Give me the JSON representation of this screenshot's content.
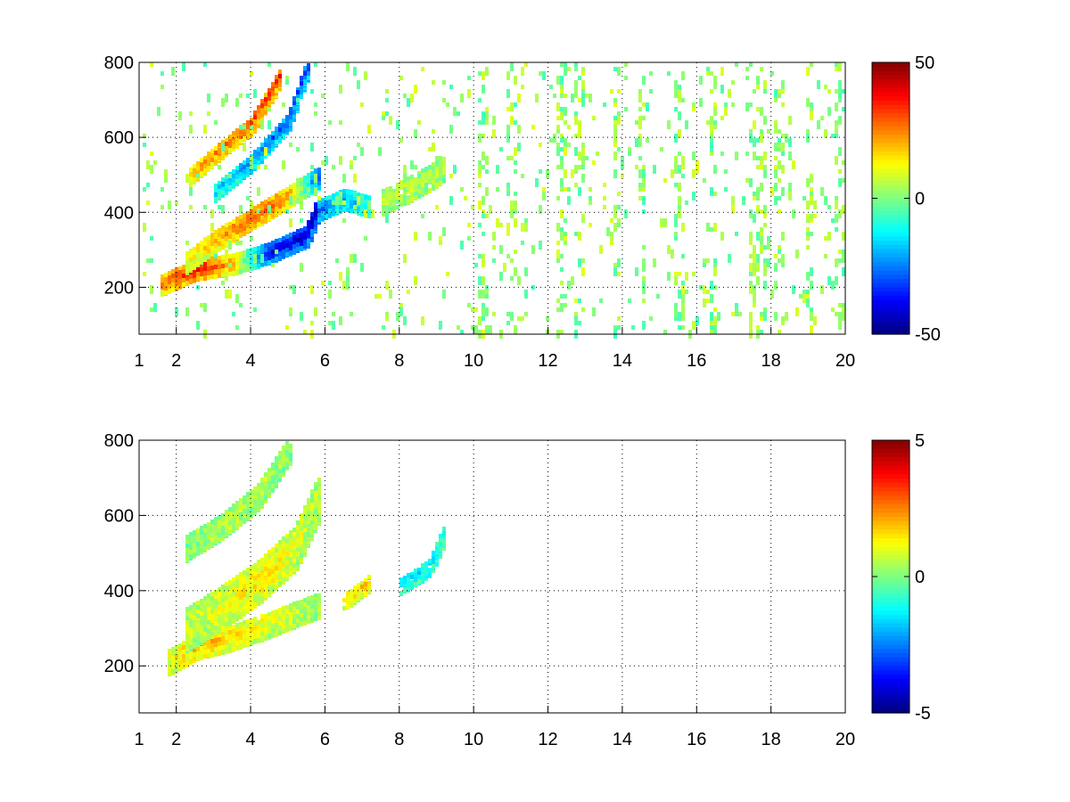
{
  "figure": {
    "background": "#ffffff"
  },
  "chart_data": [
    {
      "type": "heatmap",
      "title": "",
      "xlabel": "",
      "ylabel": "",
      "xlim": [
        1,
        20
      ],
      "ylim": [
        75,
        800
      ],
      "xticks": [
        1,
        2,
        4,
        6,
        8,
        10,
        12,
        14,
        16,
        18,
        20
      ],
      "yticks": [
        200,
        400,
        600,
        800
      ],
      "xtick_labels": [
        "1",
        "2",
        "4",
        "6",
        "8",
        "10",
        "12",
        "14",
        "16",
        "18",
        "20"
      ],
      "ytick_labels": [
        "200",
        "400",
        "600",
        "800"
      ],
      "grid": true,
      "grid_style": "dotted",
      "colormap": "jet",
      "clim": [
        -50,
        50
      ],
      "colorbar_ticks": [
        50,
        0,
        -50
      ],
      "colorbar_labels": [
        "50",
        "0",
        "-50"
      ],
      "features": [
        {
          "kind": "band",
          "x": [
            1.6,
            2.5,
            3.5,
            4.5,
            5.5,
            5.8
          ],
          "y": [
            215,
            255,
            270,
            300,
            345,
            420
          ],
          "width": 55,
          "values": [
            25,
            40,
            20,
            -40,
            -45,
            -50
          ]
        },
        {
          "kind": "band",
          "x": [
            2.2,
            3.0,
            4.0,
            5.0,
            5.8
          ],
          "y": [
            270,
            330,
            390,
            450,
            500
          ],
          "width": 55,
          "values": [
            10,
            20,
            30,
            25,
            -30
          ]
        },
        {
          "kind": "band",
          "x": [
            2.3,
            3.0,
            4.0,
            4.8
          ],
          "y": [
            500,
            560,
            640,
            770
          ],
          "width": 45,
          "values": [
            20,
            25,
            30,
            35
          ]
        },
        {
          "kind": "band",
          "x": [
            3.0,
            4.0,
            5.0,
            5.5
          ],
          "y": [
            460,
            540,
            650,
            790
          ],
          "width": 45,
          "values": [
            -15,
            -25,
            -30,
            -35
          ]
        },
        {
          "kind": "band",
          "x": [
            5.8,
            6.5,
            7.2
          ],
          "y": [
            410,
            440,
            420
          ],
          "width": 50,
          "values": [
            -30,
            -20,
            -15
          ]
        },
        {
          "kind": "blob",
          "x": [
            7.5,
            8.5,
            9.2
          ],
          "y": [
            430,
            480,
            520
          ],
          "width": 60,
          "values": [
            5,
            5,
            5
          ]
        }
      ],
      "noise": {
        "density": 0.05,
        "amplitude": 8,
        "x_range": [
          1,
          20
        ],
        "stripe_columns_x": [
          10.2,
          11.0,
          12.3,
          12.8,
          13.8,
          14.5,
          15.5,
          16.4,
          17.5,
          17.7,
          18.2,
          19.0,
          19.8
        ]
      }
    },
    {
      "type": "heatmap",
      "title": "",
      "xlabel": "",
      "ylabel": "",
      "xlim": [
        1,
        20
      ],
      "ylim": [
        75,
        800
      ],
      "xticks": [
        1,
        2,
        4,
        6,
        8,
        10,
        12,
        14,
        16,
        18,
        20
      ],
      "yticks": [
        200,
        400,
        600,
        800
      ],
      "xtick_labels": [
        "1",
        "2",
        "4",
        "6",
        "8",
        "10",
        "12",
        "14",
        "16",
        "18",
        "20"
      ],
      "ytick_labels": [
        "200",
        "400",
        "600",
        "800"
      ],
      "grid": true,
      "grid_style": "dotted",
      "colormap": "jet",
      "clim": [
        -5,
        5
      ],
      "colorbar_ticks": [
        5,
        0,
        -5
      ],
      "colorbar_labels": [
        "5",
        "0",
        "-5"
      ],
      "features": [
        {
          "kind": "band",
          "x": [
            1.8,
            2.5,
            3.5,
            4.5,
            5.8
          ],
          "y": [
            220,
            260,
            285,
            320,
            370
          ],
          "width": 70,
          "values": [
            1,
            2,
            1.5,
            1,
            0.5
          ]
        },
        {
          "kind": "band",
          "x": [
            2.2,
            3.2,
            4.2,
            5.2,
            5.8
          ],
          "y": [
            300,
            360,
            430,
            520,
            650
          ],
          "width": 110,
          "values": [
            0.5,
            1,
            1.5,
            1,
            0.5
          ]
        },
        {
          "kind": "band",
          "x": [
            2.2,
            3.2,
            4.2,
            5.0
          ],
          "y": [
            520,
            580,
            660,
            780
          ],
          "width": 70,
          "values": [
            0,
            0.5,
            0.5,
            0
          ]
        },
        {
          "kind": "blob",
          "x": [
            6.5,
            7.2
          ],
          "y": [
            380,
            430
          ],
          "width": 45,
          "values": [
            1,
            2
          ]
        },
        {
          "kind": "blob",
          "x": [
            8.0,
            8.8,
            9.2
          ],
          "y": [
            420,
            470,
            560
          ],
          "width": 45,
          "values": [
            -1.5,
            -1.5,
            -1
          ]
        }
      ],
      "noise": {
        "density": 0.0,
        "amplitude": 0,
        "x_range": [
          1,
          10
        ]
      }
    }
  ]
}
